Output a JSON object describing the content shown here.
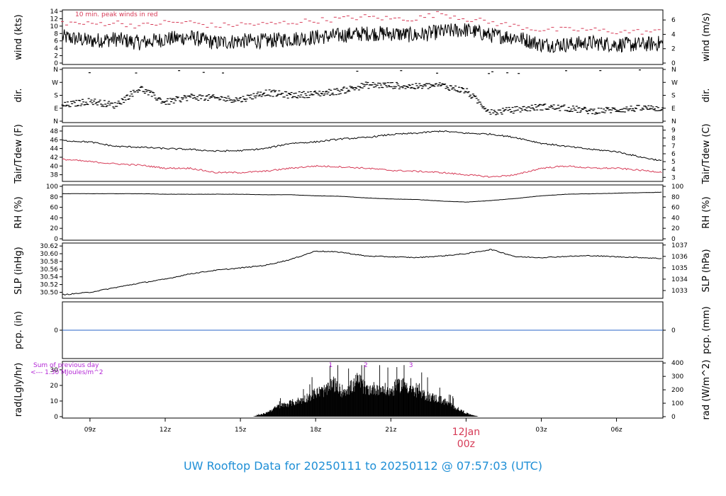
{
  "title": "UW Rooftop Data for 20250111  to  20250112 @ 07:57:03  (UTC)",
  "colors": {
    "series": "#000000",
    "peak": "#d63a56",
    "dew": "#d63a56",
    "precip": "#2a66c9",
    "annot": "#b428d6",
    "title": "#1f8fd6",
    "date": "#d63a56"
  },
  "time_axis": {
    "ticks": [
      "09z",
      "12z",
      "15z",
      "18z",
      "21z",
      "03z",
      "06z"
    ],
    "date_label": "12Jan",
    "date_sub": "00z"
  },
  "chart_data": [
    {
      "type": "line",
      "name": "wind",
      "ylabel_left": "wind (kts)",
      "ylabel_right": "wind (m/s)",
      "annotation": "10 min. peak winds in red",
      "yticks_left": [
        "0",
        "2",
        "4",
        "6",
        "8",
        "10",
        "12",
        "14"
      ],
      "yticks_right": [
        "0",
        "2",
        "4",
        "6"
      ],
      "ylim": [
        0,
        14
      ],
      "x": [
        8,
        9,
        10,
        11,
        12,
        13,
        14,
        15,
        16,
        17,
        18,
        19,
        20,
        21,
        22,
        23,
        24,
        25,
        26,
        27,
        28,
        29,
        30,
        31,
        32
      ],
      "series": [
        {
          "role": "speed",
          "values": [
            7,
            6,
            6.5,
            5.5,
            6.5,
            7,
            5.5,
            6,
            6,
            6.5,
            7,
            7.5,
            8,
            8,
            7.5,
            8.5,
            9,
            7.5,
            7,
            5,
            5,
            5.5,
            5,
            5,
            5.5
          ]
        },
        {
          "role": "peak",
          "values": [
            11,
            10.5,
            11,
            10,
            11,
            11,
            10,
            10.5,
            10.5,
            11,
            11.5,
            12,
            12.5,
            12,
            12,
            13.5,
            12,
            11,
            10,
            9,
            9,
            9,
            8.5,
            8.5,
            8.5
          ]
        }
      ]
    },
    {
      "type": "scatter",
      "name": "direction",
      "ylabel_left": "dir.",
      "ylabel_right": "dir.",
      "yticks_left": [
        "N",
        "E",
        "S",
        "W",
        "N"
      ],
      "yticks_right": [
        "N",
        "E",
        "S",
        "W",
        "N"
      ],
      "ylim": [
        0,
        360
      ],
      "x": [
        8,
        9,
        10,
        11,
        12,
        13,
        14,
        15,
        16,
        17,
        18,
        19,
        20,
        21,
        22,
        23,
        24,
        25,
        26,
        27,
        28,
        29,
        30,
        31,
        32
      ],
      "series": [
        {
          "values": [
            110,
            140,
            110,
            230,
            130,
            170,
            160,
            150,
            200,
            180,
            190,
            210,
            250,
            250,
            240,
            250,
            210,
            60,
            80,
            100,
            90,
            70,
            80,
            90,
            90
          ]
        }
      ]
    },
    {
      "type": "line",
      "name": "temperature",
      "ylabel_left": "Tair/Tdew (F)",
      "ylabel_right": "Tair/Tdew (C)",
      "yticks_left": [
        "38",
        "40",
        "42",
        "44",
        "46",
        "48"
      ],
      "yticks_right": [
        "3",
        "4",
        "5",
        "6",
        "7",
        "8",
        "9"
      ],
      "ylim": [
        36.8,
        48.8
      ],
      "x": [
        8,
        9,
        10,
        11,
        12,
        13,
        14,
        15,
        16,
        17,
        18,
        19,
        20,
        21,
        22,
        23,
        24,
        25,
        26,
        27,
        28,
        29,
        30,
        31,
        32
      ],
      "series": [
        {
          "role": "Tair",
          "values": [
            45.8,
            45.5,
            44.5,
            44.3,
            44,
            43.8,
            43.4,
            43.5,
            44,
            45.2,
            45.5,
            46.2,
            46.5,
            47.2,
            47.5,
            48,
            47.5,
            47.3,
            46.5,
            45.2,
            44.5,
            43.8,
            43.3,
            42,
            41
          ]
        },
        {
          "role": "Tdew",
          "values": [
            41.5,
            41,
            40.5,
            40.2,
            39.5,
            39.5,
            38.5,
            38.5,
            38.8,
            39.5,
            40,
            39.8,
            39.5,
            39,
            38.8,
            38.5,
            38,
            37.5,
            38,
            39.5,
            40,
            39.5,
            39.5,
            39,
            38.5
          ]
        }
      ]
    },
    {
      "type": "line",
      "name": "humidity",
      "ylabel_left": "RH (%)",
      "ylabel_right": "RH (%)",
      "yticks_left": [
        "0",
        "20",
        "40",
        "60",
        "80",
        "100"
      ],
      "yticks_right": [
        "0",
        "20",
        "40",
        "60",
        "80",
        "100"
      ],
      "ylim": [
        0,
        100
      ],
      "x": [
        8,
        9,
        10,
        11,
        12,
        13,
        14,
        15,
        16,
        17,
        18,
        19,
        20,
        21,
        22,
        23,
        24,
        25,
        26,
        27,
        28,
        29,
        30,
        31,
        32
      ],
      "series": [
        {
          "values": [
            86,
            86,
            86,
            86,
            85,
            85,
            85,
            85,
            84,
            84,
            82,
            81,
            78,
            76,
            75,
            72,
            70,
            73,
            77,
            82,
            85,
            86,
            87,
            88,
            89
          ]
        }
      ]
    },
    {
      "type": "line",
      "name": "pressure",
      "ylabel_left": "SLP (inHg)",
      "ylabel_right": "SLP (hPa)",
      "yticks_left": [
        "30.50",
        "30.52",
        "30.54",
        "30.56",
        "30.58",
        "30.60",
        "30.62"
      ],
      "yticks_right": [
        "1033",
        "1034",
        "1035",
        "1036",
        "1037"
      ],
      "ylim": [
        30.488,
        30.624
      ],
      "x": [
        8,
        9,
        10,
        11,
        12,
        13,
        14,
        15,
        16,
        17,
        18,
        19,
        20,
        21,
        22,
        23,
        24,
        25,
        26,
        27,
        28,
        29,
        30,
        31,
        32
      ],
      "series": [
        {
          "values": [
            30.494,
            30.5,
            30.512,
            30.524,
            30.534,
            30.548,
            30.557,
            30.563,
            30.57,
            30.585,
            30.607,
            30.604,
            30.594,
            30.592,
            30.59,
            30.594,
            30.6,
            30.611,
            30.592,
            30.59,
            30.593,
            30.595,
            30.592,
            30.59,
            30.587
          ]
        }
      ]
    },
    {
      "type": "line",
      "name": "precipitation",
      "ylabel_left": "pcp. (in)",
      "ylabel_right": "pcp. (mm)",
      "yticks_left": [
        "0"
      ],
      "yticks_right": [
        "0"
      ],
      "ylim": [
        -1,
        1
      ],
      "x": [
        8,
        32
      ],
      "series": [
        {
          "values": [
            0,
            0
          ]
        }
      ]
    },
    {
      "type": "area",
      "name": "radiation",
      "ylabel_left": "rad(Lgly/hr)",
      "ylabel_right": "rad (W/m^2)",
      "yticks_left": [
        "0",
        "10",
        "20",
        "30"
      ],
      "yticks_right": [
        "0",
        "100",
        "200",
        "300",
        "400"
      ],
      "ylim": [
        0,
        34.5
      ],
      "annotation_line1": "Sum of previous day",
      "annotation_line2": "<--- 1.30 MJoules/m^2",
      "markers": [
        "1",
        "2",
        "3"
      ],
      "marker_hours": [
        18.6,
        20.0,
        21.8
      ],
      "x": [
        15.5,
        16,
        16.5,
        17,
        17.5,
        18,
        18.5,
        18.7,
        19,
        19.5,
        19.7,
        20,
        20.5,
        21,
        21.5,
        22,
        22.5,
        23,
        23.5,
        24,
        24.5
      ],
      "series": [
        {
          "values": [
            0,
            2,
            6,
            8,
            10,
            14,
            16,
            20,
            15,
            18,
            22,
            16,
            17,
            15,
            20,
            14,
            12,
            10,
            6,
            2,
            0
          ]
        }
      ]
    }
  ]
}
